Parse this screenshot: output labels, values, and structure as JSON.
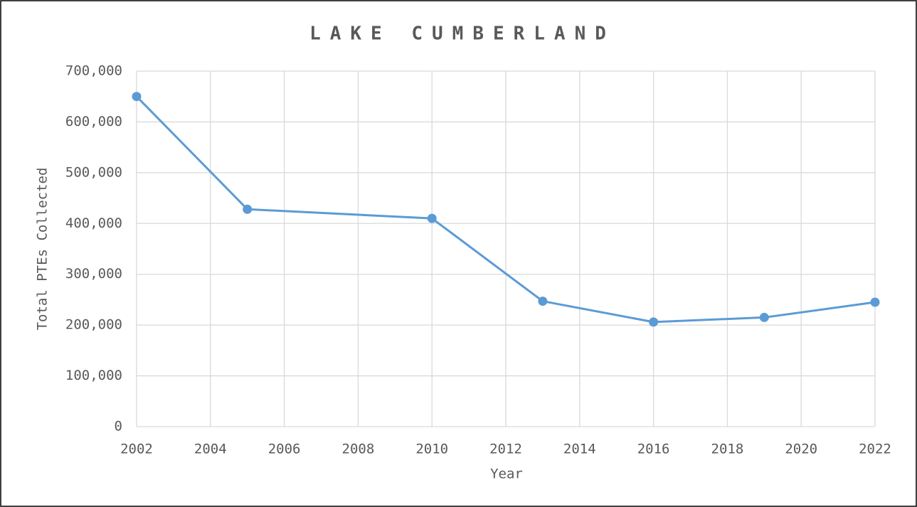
{
  "chart_data": {
    "type": "line",
    "title": "LAKE CUMBERLAND",
    "x_label": "Year",
    "y_label": "Total PTEs Collected",
    "x": [
      2002,
      2005,
      2010,
      2013,
      2016,
      2019,
      2022
    ],
    "series": [
      {
        "name": "Total PTEs Collected",
        "color": "#5b9bd5",
        "values": [
          650000,
          428000,
          410000,
          247000,
          206000,
          215000,
          245000
        ]
      }
    ],
    "xlim": [
      2002,
      2022
    ],
    "xticks": [
      2002,
      2004,
      2006,
      2008,
      2010,
      2012,
      2014,
      2016,
      2018,
      2020,
      2022
    ],
    "ylim": [
      0,
      700000
    ],
    "yticks": [
      0,
      {
        "value": 100000,
        "label": "100,000"
      },
      {
        "value": 200000,
        "label": "200,000"
      },
      {
        "value": 300000,
        "label": "300,000"
      },
      {
        "value": 400000,
        "label": "400,000"
      },
      {
        "value": 500000,
        "label": "500,000"
      },
      {
        "value": 600000,
        "label": "600,000"
      },
      {
        "value": 700000,
        "label": "700,000"
      }
    ],
    "grid": true
  }
}
